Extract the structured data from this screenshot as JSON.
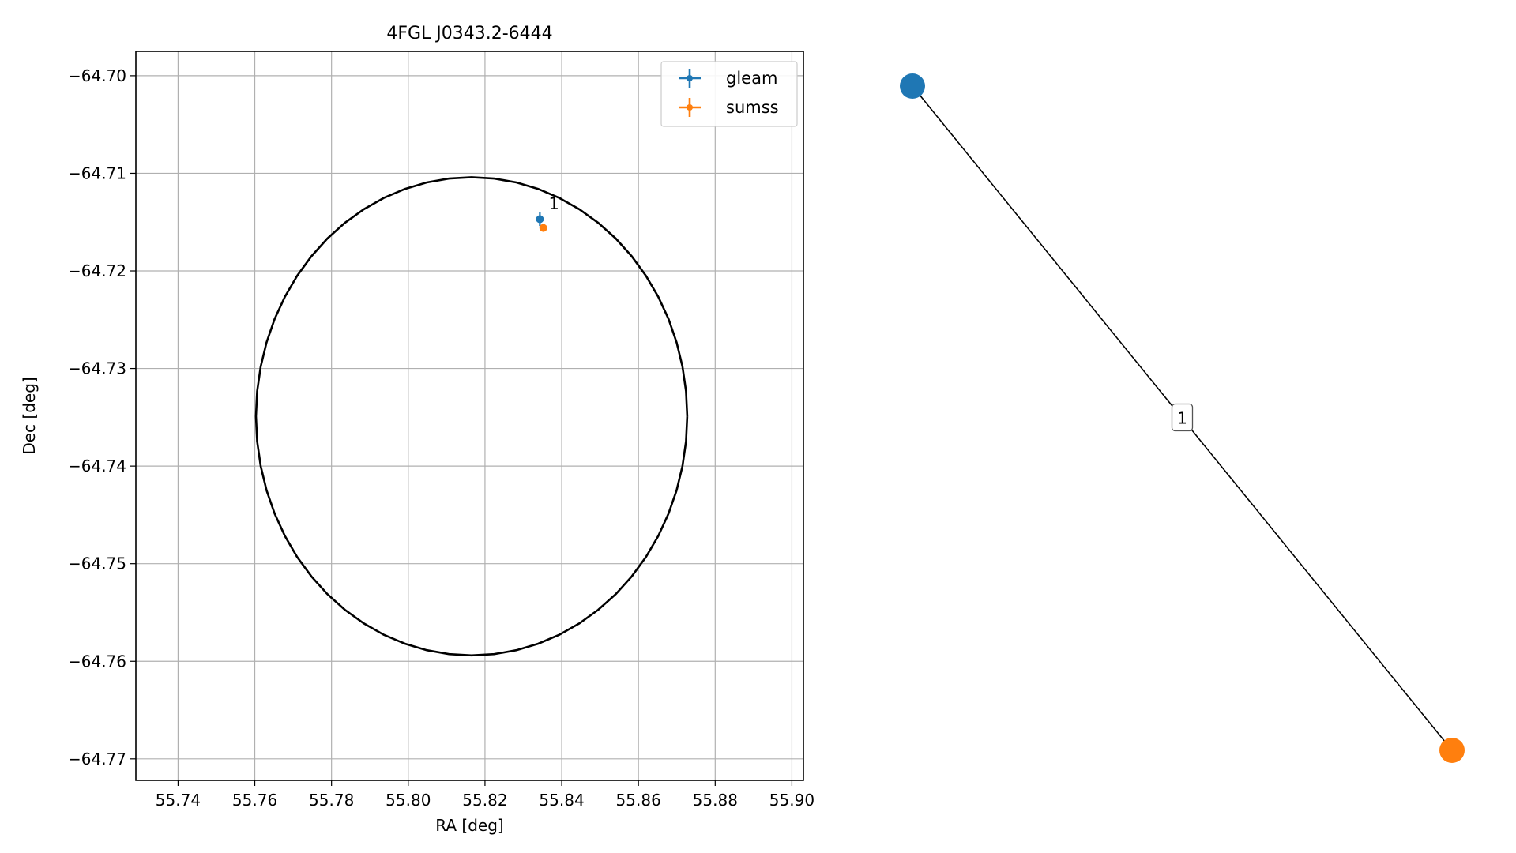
{
  "chart_data": [
    {
      "type": "scatter",
      "title": "4FGL J0343.2-6444",
      "xlabel": "RA [deg]",
      "ylabel": "Dec [deg]",
      "xlim": [
        55.729,
        55.903
      ],
      "ylim": [
        -64.7722,
        -64.6975
      ],
      "xticks": [
        55.74,
        55.76,
        55.78,
        55.8,
        55.82,
        55.84,
        55.86,
        55.88,
        55.9
      ],
      "xtick_labels": [
        "55.74",
        "55.76",
        "55.78",
        "55.80",
        "55.82",
        "55.84",
        "55.86",
        "55.88",
        "55.90"
      ],
      "yticks": [
        -64.7,
        -64.71,
        -64.72,
        -64.73,
        -64.74,
        -64.75,
        -64.76,
        -64.77
      ],
      "ytick_labels": [
        "−64.70",
        "−64.71",
        "−64.72",
        "−64.73",
        "−64.74",
        "−64.75",
        "−64.76",
        "−64.77"
      ],
      "grid": true,
      "legend": "top-right",
      "series": [
        {
          "name": "gleam",
          "color": "#1f77b4",
          "x": [
            55.8343
          ],
          "y": [
            -64.7147
          ],
          "xerr": [
            0.0003
          ],
          "yerr": [
            0.0007
          ]
        },
        {
          "name": "sumss",
          "color": "#ff7f0e",
          "x": [
            55.8352
          ],
          "y": [
            -64.7156
          ],
          "xerr": [
            0.0002
          ],
          "yerr": [
            0.0002
          ]
        }
      ],
      "annotations": [
        {
          "text": "1",
          "x": 55.8366,
          "y": -64.7137
        }
      ],
      "ellipse": {
        "center": [
          55.8165,
          -64.7349
        ],
        "semi_axis_ra": 0.0562,
        "semi_axis_dec": 0.0245,
        "color": "#000000"
      }
    },
    {
      "type": "network",
      "nodes": [
        {
          "name": "gleam",
          "color": "#1f77b4"
        },
        {
          "name": "sumss",
          "color": "#ff7f0e"
        }
      ],
      "edges": [
        {
          "source": "gleam",
          "target": "sumss",
          "label": "1"
        }
      ]
    }
  ]
}
